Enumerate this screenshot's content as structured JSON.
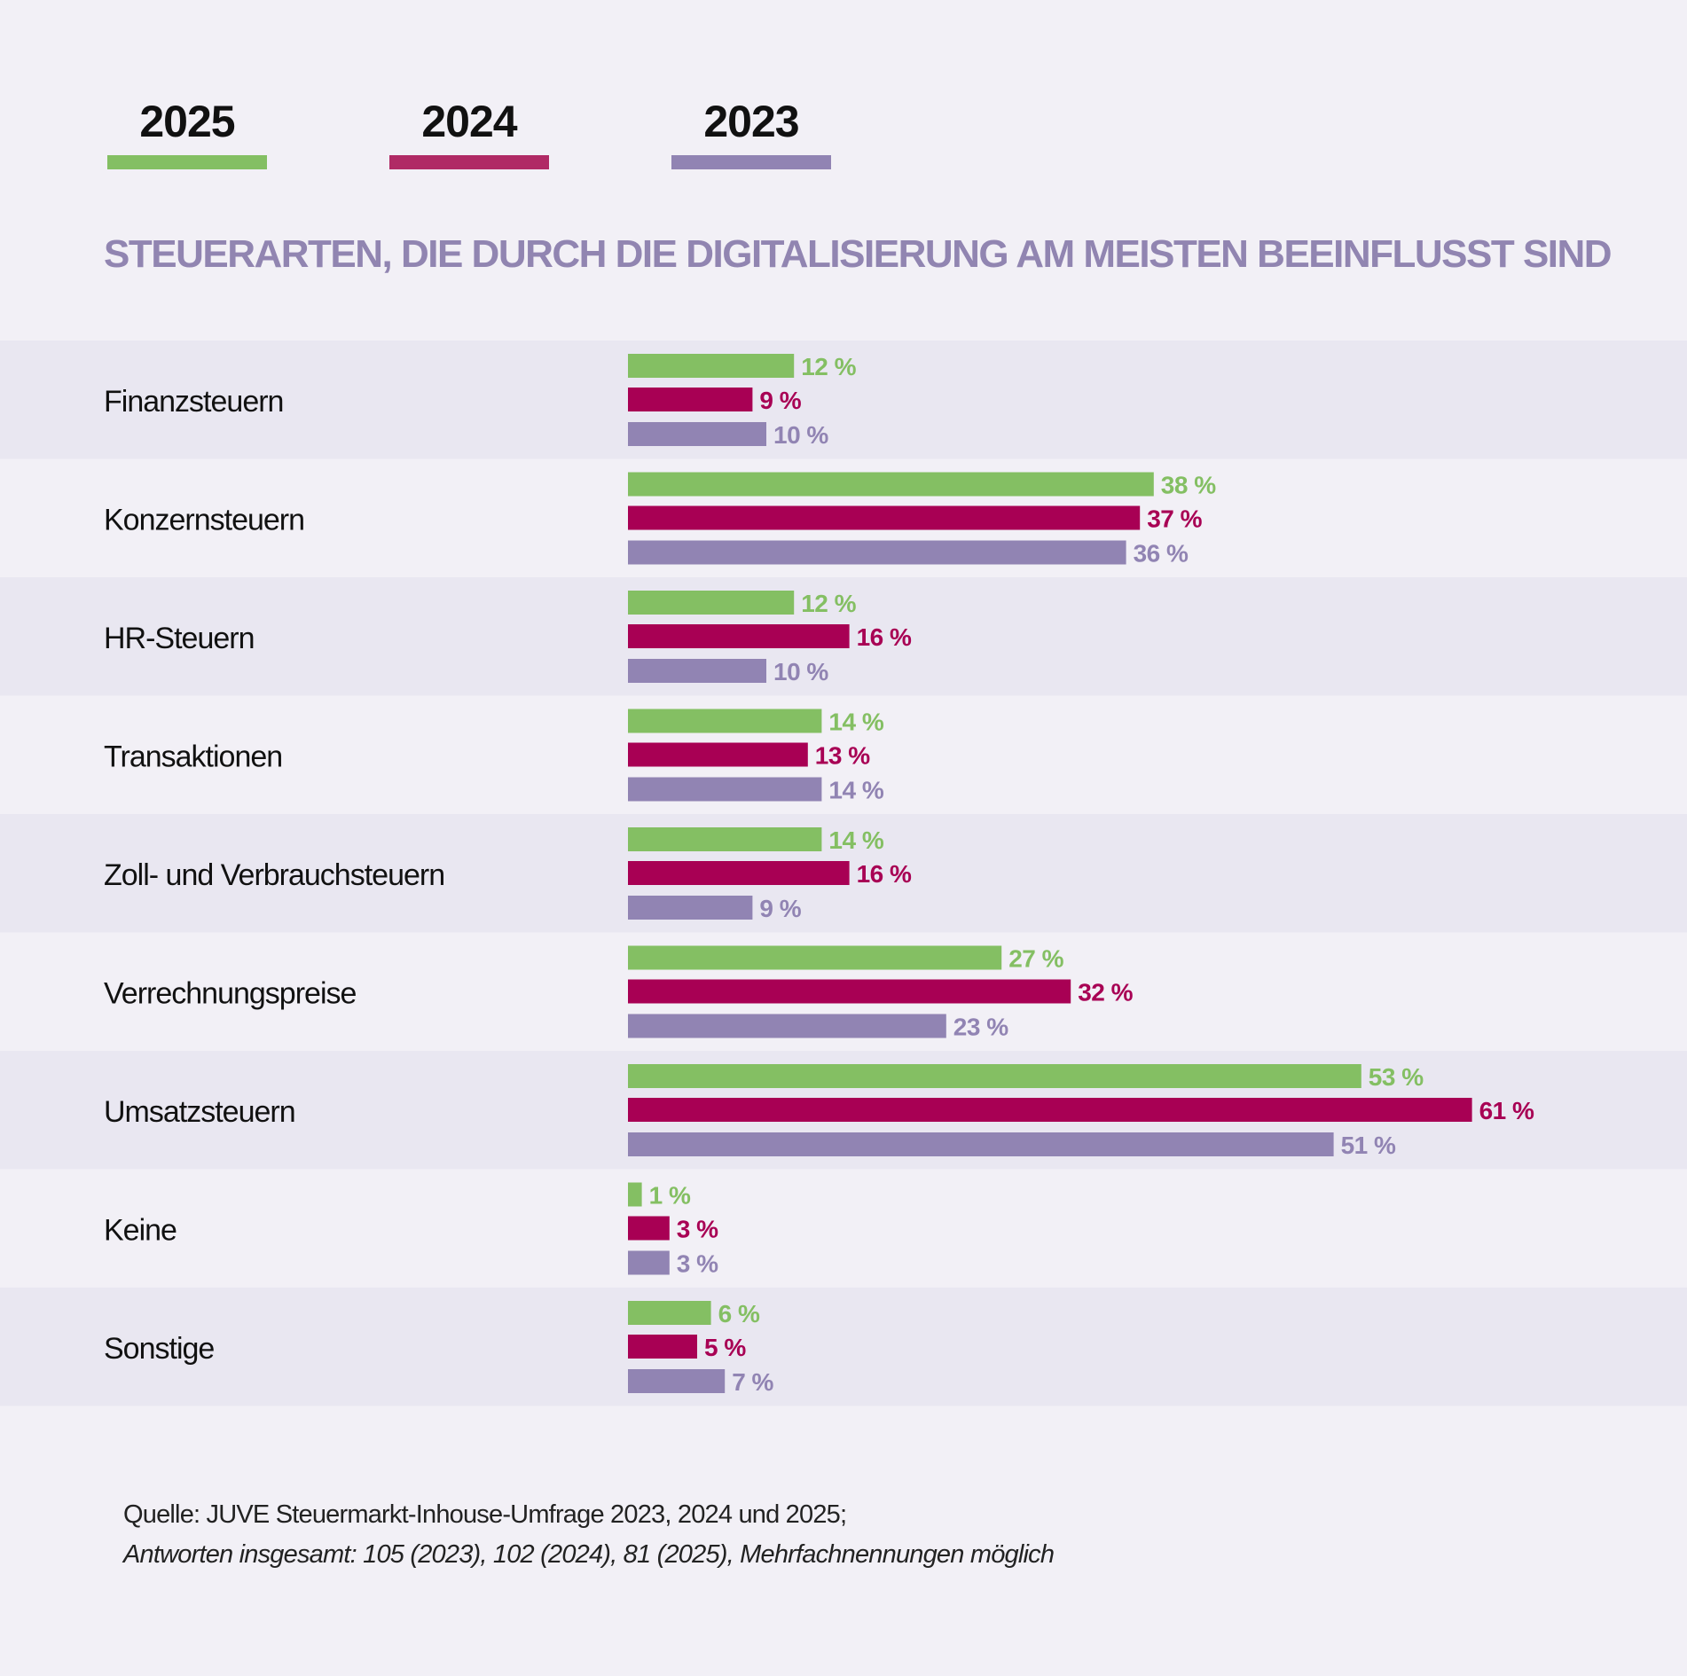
{
  "title": "STEUERARTEN, DIE DURCH DIE DIGITALISIERUNG AM MEISTEN BEEINFLUSST SIND",
  "legend": [
    {
      "label": "2025",
      "color": "#84bf63"
    },
    {
      "label": "2024",
      "color": "#a80054"
    },
    {
      "label": "2023",
      "color": "#9184b3"
    }
  ],
  "footer": {
    "source": "Quelle: JUVE Steuermarkt-Inhouse-Umfrage 2023, 2024 und 2025;",
    "note": "Antworten insgesamt: 105 (2023), 102 (2024), 81 (2025), Mehrfachnennungen möglich"
  },
  "chart_data": {
    "type": "bar",
    "orientation": "horizontal",
    "title": "STEUERARTEN, DIE DURCH DIE DIGITALISIERUNG AM MEISTEN BEEINFLUSST SIND",
    "value_suffix": " %",
    "categories": [
      "Finanzsteuern",
      "Konzernsteuern",
      "HR-Steuern",
      "Transaktionen",
      "Zoll- und Verbrauchsteuern",
      "Verrechnungspreise",
      "Umsatzsteuern",
      "Keine",
      "Sonstige"
    ],
    "series": [
      {
        "name": "2025",
        "color": "#84bf63",
        "label_color": "#84bf63",
        "values": [
          12,
          38,
          12,
          14,
          14,
          27,
          53,
          1,
          6
        ]
      },
      {
        "name": "2024",
        "color": "#a80054",
        "label_color": "#a80054",
        "values": [
          9,
          37,
          16,
          13,
          16,
          32,
          61,
          3,
          5
        ]
      },
      {
        "name": "2023",
        "color": "#9184b3",
        "label_color": "#9184b3",
        "values": [
          10,
          36,
          10,
          14,
          9,
          23,
          51,
          3,
          7
        ]
      }
    ],
    "xlim": [
      0,
      61
    ],
    "grid": false,
    "legend_position": "top-left",
    "row_colors": [
      "#e9e7f1",
      "#f2f0f6"
    ]
  }
}
